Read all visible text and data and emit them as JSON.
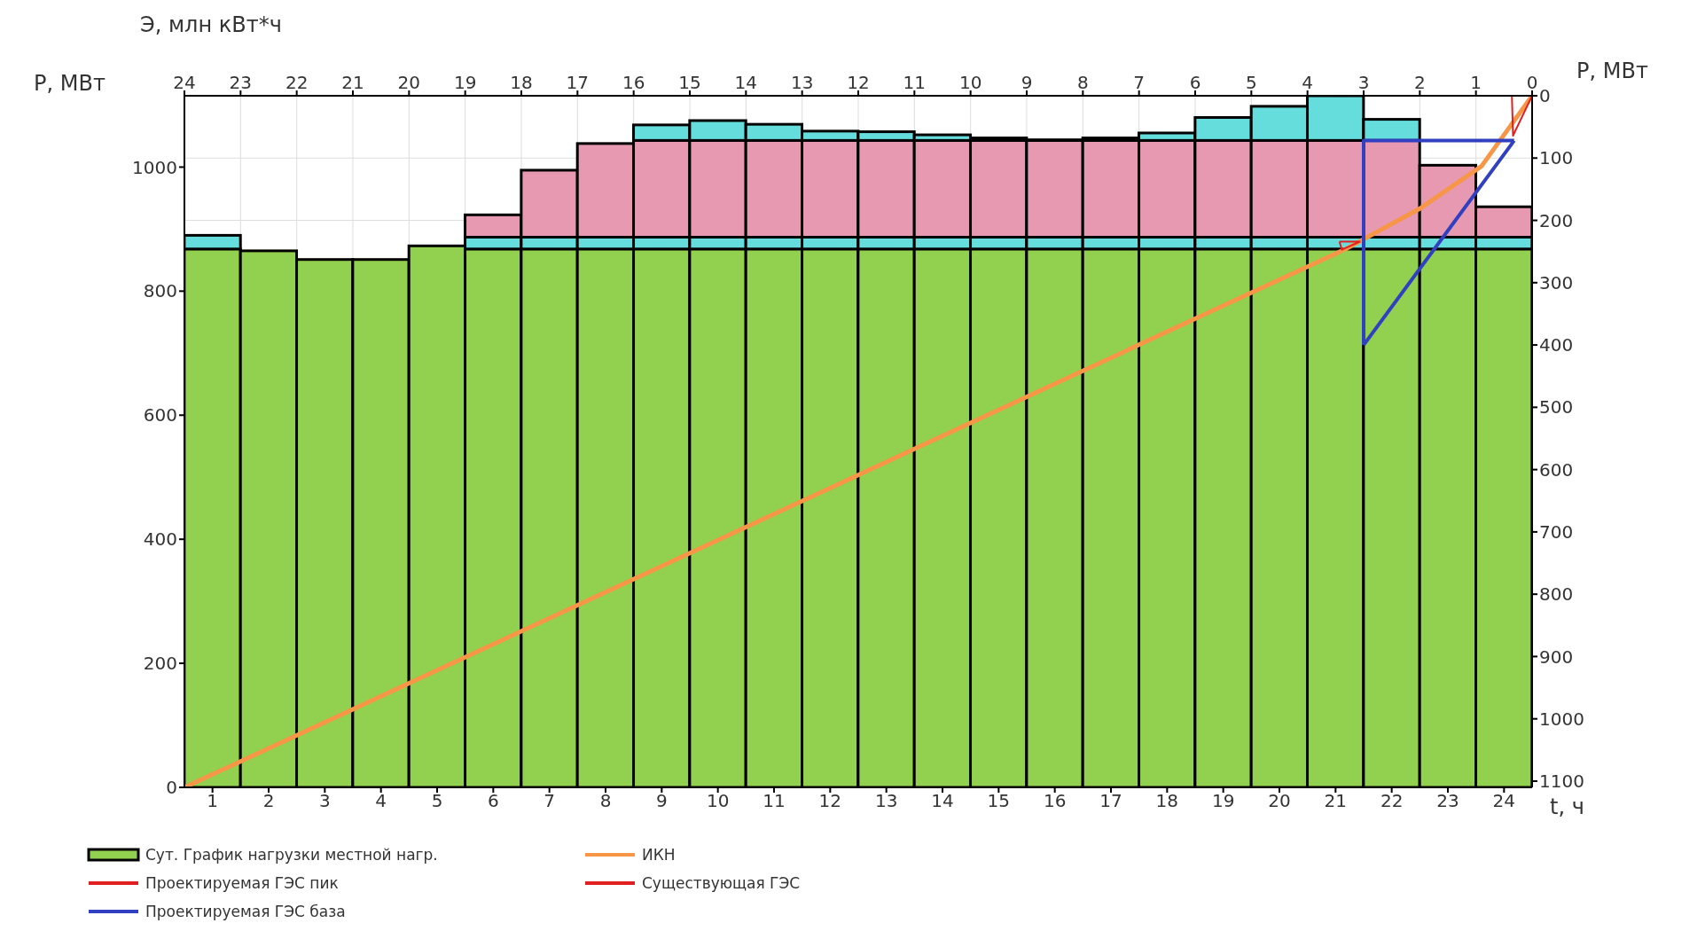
{
  "chart_data": {
    "type": "bar",
    "stacked": true,
    "xlabel": "t, ч",
    "ylabel": "P, МВт",
    "y2label": "P, МВт",
    "x2label": "Э, млн кВт*ч",
    "x": [
      0.5,
      1.5,
      2.5,
      3.5,
      4.5,
      5.5,
      6.5,
      7.5,
      8.5,
      9.5,
      10.5,
      11.5,
      12.5,
      13.5,
      14.5,
      15.5,
      16.5,
      17.5,
      18.5,
      19.5,
      20.5,
      21.5,
      22.5,
      23.5
    ],
    "xlim": [
      0,
      24
    ],
    "xticks": [
      {
        "value": 0.5,
        "label": "1"
      },
      {
        "value": 1.5,
        "label": "2"
      },
      {
        "value": 2.5,
        "label": "3"
      },
      {
        "value": 3.5,
        "label": "4"
      },
      {
        "value": 4.5,
        "label": "5"
      },
      {
        "value": 5.5,
        "label": "6"
      },
      {
        "value": 6.5,
        "label": "7"
      },
      {
        "value": 7.5,
        "label": "8"
      },
      {
        "value": 8.5,
        "label": "9"
      },
      {
        "value": 9.5,
        "label": "10"
      },
      {
        "value": 10.5,
        "label": "11"
      },
      {
        "value": 11.5,
        "label": "12"
      },
      {
        "value": 12.5,
        "label": "13"
      },
      {
        "value": 13.5,
        "label": "14"
      },
      {
        "value": 14.5,
        "label": "15"
      },
      {
        "value": 15.5,
        "label": "16"
      },
      {
        "value": 16.5,
        "label": "17"
      },
      {
        "value": 17.5,
        "label": "18"
      },
      {
        "value": 18.5,
        "label": "19"
      },
      {
        "value": 19.5,
        "label": "20"
      },
      {
        "value": 20.5,
        "label": "21"
      },
      {
        "value": 21.5,
        "label": "22"
      },
      {
        "value": 22.5,
        "label": "23"
      },
      {
        "value": 23.5,
        "label": "24"
      }
    ],
    "ylim": [
      0,
      1115
    ],
    "yticks": [
      0,
      200,
      400,
      600,
      800,
      1000
    ],
    "y2lim": [
      1110,
      0
    ],
    "y2ticks": [
      0,
      100,
      200,
      300,
      400,
      500,
      600,
      700,
      800,
      900,
      1000,
      1100
    ],
    "x2lim": [
      24,
      0
    ],
    "x2ticks": [
      24,
      23,
      22,
      21,
      20,
      19,
      18,
      17,
      16,
      15,
      14,
      13,
      12,
      11,
      10,
      9,
      8,
      7,
      6,
      5,
      4,
      3,
      2,
      1,
      0
    ],
    "grid": true,
    "legend": "bottom",
    "series": [
      {
        "name": "Сут. График нагрузки местной нагр.",
        "color": "#92d050",
        "values": [
          868,
          865,
          851,
          851,
          873,
          868,
          868,
          868,
          868,
          868,
          868,
          868,
          868,
          868,
          868,
          868,
          868,
          868,
          868,
          868,
          868,
          868,
          868,
          868
        ]
      },
      {
        "color": "#66dddd",
        "values": [
          22,
          null,
          null,
          null,
          null,
          19,
          19,
          19,
          19,
          19,
          19,
          19,
          19,
          19,
          19,
          19,
          19,
          19,
          19,
          19,
          19,
          19,
          19,
          19
        ]
      },
      {
        "color": "#e699b0",
        "values": [
          null,
          null,
          null,
          null,
          null,
          36,
          108,
          151,
          156,
          156,
          156,
          156,
          156,
          156,
          156,
          156,
          156,
          156,
          156,
          156,
          156,
          156,
          116,
          49
        ]
      },
      {
        "color": "#66dddd",
        "values": [
          null,
          null,
          null,
          null,
          null,
          null,
          null,
          null,
          25,
          32,
          26,
          15,
          14,
          9,
          4,
          1,
          4,
          12,
          37,
          55,
          72,
          34,
          null,
          null
        ]
      },
      {
        "name": "ИКН",
        "type": "line",
        "axis": "y2",
        "color": "#f79646",
        "x": [
          0,
          20.7,
          22,
          23.1,
          24
        ],
        "values": [
          1110,
          245,
          181,
          113,
          0
        ]
      },
      {
        "name": "Проектируемая ГЭС пик",
        "type": "line",
        "axis": "y2",
        "color": "#e02020",
        "x": [
          23.64,
          23.66,
          24,
          null,
          23.64,
          24
        ],
        "values": [
          0,
          64,
          0,
          null,
          0,
          0
        ]
      },
      {
        "name": "Существующая ГЭС",
        "type": "line",
        "axis": "y2",
        "color": "#e02020",
        "x": [
          20.57,
          20.94,
          null,
          20.57,
          20.61,
          20.94
        ],
        "values": [
          234,
          234,
          null,
          234,
          247,
          234
        ]
      },
      {
        "name": "Проектируемая ГЭС база",
        "type": "line",
        "axis": "y2",
        "color": "#3040c0",
        "x": [
          21,
          21,
          23.68,
          null,
          21,
          23.68
        ],
        "values": [
          400,
          72,
          72,
          null,
          400,
          72
        ]
      }
    ]
  }
}
